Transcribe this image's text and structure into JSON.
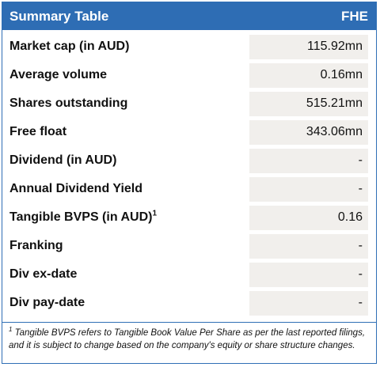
{
  "table": {
    "title": "Summary Table",
    "ticker": "FHE",
    "rows": [
      {
        "label": "Market cap (in AUD)",
        "value": "115.92mn"
      },
      {
        "label": "Average volume",
        "value": "0.16mn"
      },
      {
        "label": "Shares outstanding",
        "value": "515.21mn"
      },
      {
        "label": "Free float",
        "value": "343.06mn"
      },
      {
        "label": "Dividend (in AUD)",
        "value": "-"
      },
      {
        "label": "Annual Dividend Yield",
        "value": "-"
      },
      {
        "label": "Tangible BVPS (in AUD)",
        "label_sup": "1",
        "value": "0.16"
      },
      {
        "label": "Franking",
        "value": "-"
      },
      {
        "label": "Div ex-date",
        "value": "-"
      },
      {
        "label": "Div pay-date",
        "value": "-"
      }
    ]
  },
  "footnote": {
    "marker": "1",
    "text": " Tangible BVPS refers to Tangible Book Value Per Share as per the last reported filings, and it is subject to change based on the company's equity or share structure changes."
  },
  "colors": {
    "header_bg": "#2e6db4",
    "value_bg": "#f1efec",
    "border": "#2f6fb5"
  }
}
